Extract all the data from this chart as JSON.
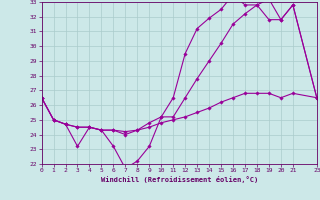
{
  "xlabel": "Windchill (Refroidissement éolien,°C)",
  "bg_color": "#cce8e8",
  "grid_color": "#aacccc",
  "line_color": "#990099",
  "line1_x": [
    0,
    1,
    2,
    3,
    4,
    5,
    6,
    7,
    8,
    9,
    10,
    11,
    12,
    13,
    14,
    15,
    16,
    17,
    18,
    19,
    20,
    21,
    23
  ],
  "line1_y": [
    26.5,
    25.0,
    24.7,
    23.2,
    24.5,
    24.3,
    23.2,
    21.7,
    22.2,
    23.2,
    25.2,
    26.5,
    29.5,
    31.2,
    31.9,
    32.5,
    33.5,
    32.8,
    32.8,
    31.8,
    31.8,
    32.8,
    26.5
  ],
  "line2_x": [
    0,
    1,
    2,
    3,
    4,
    5,
    6,
    7,
    8,
    9,
    10,
    11,
    12,
    13,
    14,
    15,
    16,
    17,
    18,
    19,
    20,
    21,
    23
  ],
  "line2_y": [
    26.5,
    25.0,
    24.7,
    24.5,
    24.5,
    24.3,
    24.3,
    24.0,
    24.3,
    24.8,
    25.2,
    25.2,
    26.5,
    27.8,
    29.0,
    30.2,
    31.5,
    32.2,
    32.8,
    33.2,
    31.8,
    32.8,
    26.5
  ],
  "line3_x": [
    0,
    1,
    2,
    3,
    4,
    5,
    6,
    7,
    8,
    9,
    10,
    11,
    12,
    13,
    14,
    15,
    16,
    17,
    18,
    19,
    20,
    21,
    23
  ],
  "line3_y": [
    26.5,
    25.0,
    24.7,
    24.5,
    24.5,
    24.3,
    24.3,
    24.2,
    24.3,
    24.5,
    24.8,
    25.0,
    25.2,
    25.5,
    25.8,
    26.2,
    26.5,
    26.8,
    26.8,
    26.8,
    26.5,
    26.8,
    26.5
  ],
  "xlim": [
    0,
    23
  ],
  "ylim": [
    22,
    33
  ],
  "xticks": [
    0,
    1,
    2,
    3,
    4,
    5,
    6,
    7,
    8,
    9,
    10,
    11,
    12,
    13,
    14,
    15,
    16,
    17,
    18,
    19,
    20,
    21,
    23
  ],
  "yticks": [
    22,
    23,
    24,
    25,
    26,
    27,
    28,
    29,
    30,
    31,
    32,
    33
  ]
}
